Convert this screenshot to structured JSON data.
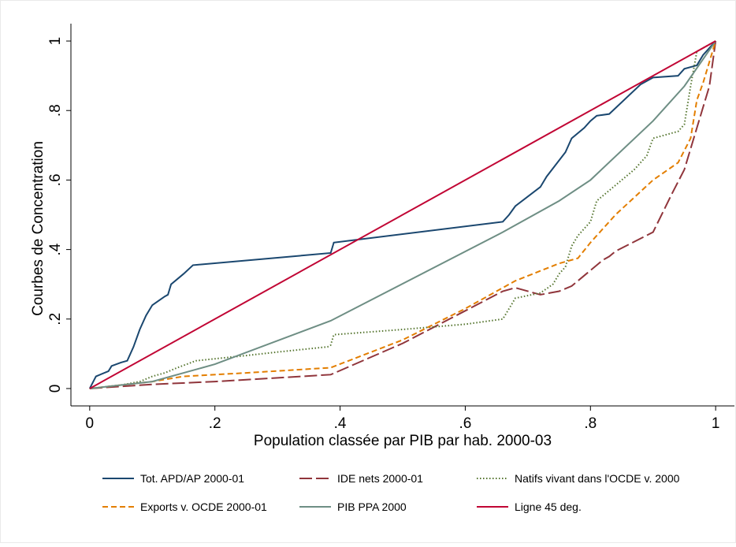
{
  "chart_data": {
    "type": "line",
    "x_label": "Population classée par PIB par hab. 2000-03",
    "y_label": "Courbes de Concentration",
    "xlim": [
      -0.03,
      1.03
    ],
    "ylim": [
      -0.05,
      1.05
    ],
    "xticks": [
      0,
      {
        "value": 0.2,
        "label": ".2"
      },
      {
        "value": 0.4,
        "label": ".4"
      },
      {
        "value": 0.6,
        "label": ".6"
      },
      {
        "value": 0.8,
        "label": ".8"
      },
      1
    ],
    "yticks": [
      0,
      {
        "value": 0.2,
        "label": ".2"
      },
      {
        "value": 0.4,
        "label": ".4"
      },
      {
        "value": 0.6,
        "label": ".6"
      },
      {
        "value": 0.8,
        "label": ".8"
      },
      1
    ],
    "grid": false,
    "legend": "bottom",
    "series": [
      {
        "name": "Tot. APD/AP 2000-01",
        "color": "#1a476f",
        "dash": "solid",
        "x": [
          0,
          0.01,
          0.03,
          0.035,
          0.05,
          0.06,
          0.07,
          0.08,
          0.09,
          0.1,
          0.12,
          0.125,
          0.13,
          0.15,
          0.165,
          0.385,
          0.39,
          0.66,
          0.67,
          0.68,
          0.72,
          0.73,
          0.76,
          0.77,
          0.79,
          0.8,
          0.81,
          0.83,
          0.88,
          0.9,
          0.94,
          0.95,
          0.97,
          0.98,
          1
        ],
        "values": [
          0,
          0.035,
          0.05,
          0.065,
          0.075,
          0.08,
          0.12,
          0.17,
          0.21,
          0.24,
          0.265,
          0.27,
          0.3,
          0.33,
          0.355,
          0.39,
          0.42,
          0.48,
          0.5,
          0.525,
          0.58,
          0.61,
          0.68,
          0.72,
          0.75,
          0.77,
          0.785,
          0.79,
          0.875,
          0.895,
          0.9,
          0.92,
          0.93,
          0.96,
          1
        ]
      },
      {
        "name": "IDE nets 2000-01",
        "color": "#90353b",
        "dash": "longdash",
        "x": [
          0,
          0.1,
          0.2,
          0.385,
          0.5,
          0.66,
          0.68,
          0.72,
          0.75,
          0.77,
          0.8,
          0.82,
          0.83,
          0.84,
          0.9,
          0.93,
          0.95,
          0.97,
          0.99,
          1
        ],
        "values": [
          0,
          0.012,
          0.02,
          0.04,
          0.13,
          0.28,
          0.29,
          0.27,
          0.28,
          0.295,
          0.34,
          0.37,
          0.38,
          0.395,
          0.45,
          0.56,
          0.63,
          0.75,
          0.87,
          1
        ]
      },
      {
        "name": "Natifs vivant dans l'OCDE v. 2000",
        "color": "#55752f",
        "dash": "dot",
        "x": [
          0,
          0.05,
          0.08,
          0.1,
          0.12,
          0.14,
          0.17,
          0.25,
          0.3,
          0.38,
          0.385,
          0.39,
          0.5,
          0.6,
          0.66,
          0.68,
          0.72,
          0.74,
          0.75,
          0.76,
          0.77,
          0.78,
          0.79,
          0.8,
          0.81,
          0.83,
          0.87,
          0.89,
          0.9,
          0.94,
          0.95,
          0.96,
          0.97,
          1
        ],
        "values": [
          0,
          0.01,
          0.02,
          0.035,
          0.045,
          0.06,
          0.08,
          0.095,
          0.105,
          0.12,
          0.125,
          0.155,
          0.17,
          0.185,
          0.2,
          0.26,
          0.275,
          0.3,
          0.33,
          0.35,
          0.41,
          0.44,
          0.46,
          0.48,
          0.54,
          0.57,
          0.63,
          0.67,
          0.72,
          0.74,
          0.76,
          0.87,
          0.97,
          1
        ]
      },
      {
        "name": "Exports v. OCDE 2000-01",
        "color": "#e37e00",
        "dash": "dash",
        "x": [
          0,
          0.05,
          0.1,
          0.15,
          0.25,
          0.385,
          0.5,
          0.6,
          0.68,
          0.75,
          0.78,
          0.8,
          0.82,
          0.84,
          0.9,
          0.94,
          0.96,
          0.97,
          0.98,
          1
        ],
        "values": [
          0,
          0.01,
          0.02,
          0.035,
          0.045,
          0.06,
          0.14,
          0.23,
          0.31,
          0.36,
          0.375,
          0.42,
          0.46,
          0.5,
          0.6,
          0.65,
          0.72,
          0.83,
          0.88,
          1
        ]
      },
      {
        "name": "PIB PPA 2000",
        "color": "#6e8e84",
        "dash": "solid",
        "x": [
          0,
          0.1,
          0.2,
          0.385,
          0.66,
          0.75,
          0.8,
          0.9,
          0.95,
          1
        ],
        "values": [
          0,
          0.02,
          0.07,
          0.195,
          0.45,
          0.54,
          0.6,
          0.77,
          0.87,
          1
        ]
      },
      {
        "name": "Ligne 45 deg.",
        "color": "#c10534",
        "dash": "solid",
        "x": [
          0,
          1
        ],
        "values": [
          0,
          1
        ]
      }
    ]
  }
}
